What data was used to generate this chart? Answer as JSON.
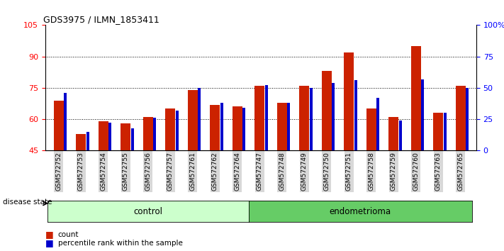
{
  "title": "GDS3975 / ILMN_1853411",
  "samples": [
    "GSM572752",
    "GSM572753",
    "GSM572754",
    "GSM572755",
    "GSM572756",
    "GSM572757",
    "GSM572761",
    "GSM572762",
    "GSM572764",
    "GSM572747",
    "GSM572748",
    "GSM572749",
    "GSM572750",
    "GSM572751",
    "GSM572758",
    "GSM572759",
    "GSM572760",
    "GSM572763",
    "GSM572765"
  ],
  "count_values": [
    69,
    53,
    59,
    58,
    61,
    65,
    74,
    67,
    66,
    76,
    68,
    76,
    83,
    92,
    65,
    61,
    95,
    63,
    76
  ],
  "percentile_values": [
    46,
    15,
    22,
    18,
    26,
    32,
    50,
    38,
    34,
    52,
    38,
    50,
    54,
    56,
    42,
    24,
    57,
    30,
    50
  ],
  "groups": [
    "control",
    "control",
    "control",
    "control",
    "control",
    "control",
    "control",
    "control",
    "control",
    "endometrioma",
    "endometrioma",
    "endometrioma",
    "endometrioma",
    "endometrioma",
    "endometrioma",
    "endometrioma",
    "endometrioma",
    "endometrioma",
    "endometrioma"
  ],
  "control_color": "#ccffcc",
  "endometrioma_color": "#66cc66",
  "bar_color_red": "#cc2200",
  "bar_color_blue": "#0000cc",
  "ylim_left": [
    45,
    105
  ],
  "ylim_right": [
    0,
    100
  ],
  "yticks_left": [
    45,
    60,
    75,
    90,
    105
  ],
  "yticks_right": [
    0,
    25,
    50,
    75,
    100
  ],
  "ytick_labels_right": [
    "0",
    "25",
    "50",
    "75",
    "100%"
  ],
  "grid_lines": [
    60,
    75,
    90
  ],
  "background_color": "#ffffff",
  "plot_bg_color": "#ffffff",
  "xtick_bg_color": "#d8d8d8",
  "red_bar_width": 0.45,
  "blue_bar_width": 0.12
}
